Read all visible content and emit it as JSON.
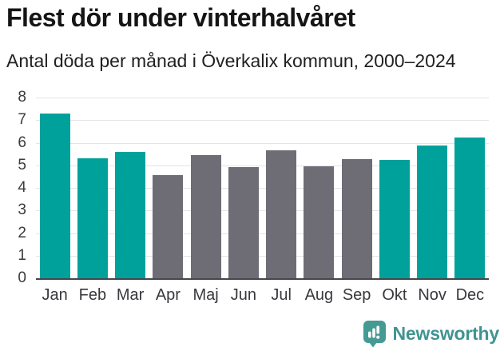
{
  "header": {
    "title": "Flest dör under vinterhalvåret",
    "subtitle": "Antal döda per månad i Överkalix kommun, 2000–2024"
  },
  "chart_data": {
    "type": "bar",
    "title": "Flest dör under vinterhalvåret",
    "subtitle": "Antal döda per månad i Överkalix kommun, 2000–2024",
    "categories": [
      "Jan",
      "Feb",
      "Mar",
      "Apr",
      "Maj",
      "Jun",
      "Jul",
      "Aug",
      "Sep",
      "Okt",
      "Nov",
      "Dec"
    ],
    "values": [
      7.28,
      5.32,
      5.6,
      4.56,
      5.44,
      4.92,
      5.68,
      4.96,
      5.28,
      5.24,
      5.88,
      6.24
    ],
    "bar_colors": [
      "#00a19b",
      "#00a19b",
      "#00a19b",
      "#6e6d76",
      "#6e6d76",
      "#6e6d76",
      "#6e6d76",
      "#6e6d76",
      "#6e6d76",
      "#00a19b",
      "#00a19b",
      "#00a19b"
    ],
    "xlabel": "",
    "ylabel": "",
    "ylim": [
      0,
      8
    ],
    "yticks": [
      0,
      1,
      2,
      3,
      4,
      5,
      6,
      7,
      8
    ],
    "grid": "horizontal",
    "legend": "none",
    "highlight_meaning": "winter-half-year months highlighted in teal, summer months gray"
  },
  "colors": {
    "highlight": "#00a19b",
    "muted": "#6e6d76",
    "grid": "#e4e4e7",
    "axis_line": "#46464c",
    "text": "#151515",
    "brand": "#3f9490"
  },
  "footer": {
    "brand": "Newsworthy",
    "logo_icon": "speech-bubble-bar-chart-icon"
  }
}
